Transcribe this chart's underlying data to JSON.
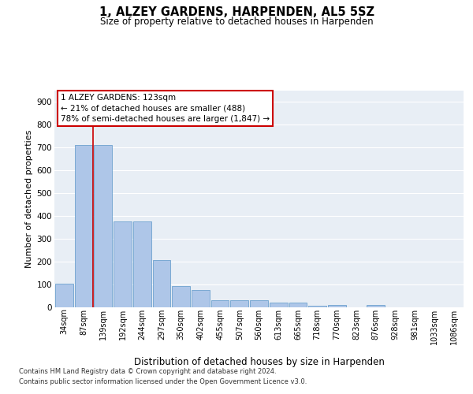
{
  "title": "1, ALZEY GARDENS, HARPENDEN, AL5 5SZ",
  "subtitle": "Size of property relative to detached houses in Harpenden",
  "xlabel": "Distribution of detached houses by size in Harpenden",
  "ylabel": "Number of detached properties",
  "categories": [
    "34sqm",
    "87sqm",
    "139sqm",
    "192sqm",
    "244sqm",
    "297sqm",
    "350sqm",
    "402sqm",
    "455sqm",
    "507sqm",
    "560sqm",
    "613sqm",
    "665sqm",
    "718sqm",
    "770sqm",
    "823sqm",
    "876sqm",
    "928sqm",
    "981sqm",
    "1033sqm",
    "1086sqm"
  ],
  "values": [
    102,
    710,
    710,
    375,
    375,
    207,
    95,
    75,
    32,
    32,
    32,
    20,
    22,
    8,
    9,
    0,
    10,
    0,
    0,
    0,
    0
  ],
  "bar_color": "#aec6e8",
  "bar_edgecolor": "#5a96c8",
  "vline_color": "#cc0000",
  "vline_pos": 1.5,
  "annotation_text": "1 ALZEY GARDENS: 123sqm\n← 21% of detached houses are smaller (488)\n78% of semi-detached houses are larger (1,847) →",
  "ylim": [
    0,
    950
  ],
  "yticks": [
    0,
    100,
    200,
    300,
    400,
    500,
    600,
    700,
    800,
    900
  ],
  "bg_color": "#e8eef5",
  "grid_color": "#ffffff",
  "footer_line1": "Contains HM Land Registry data © Crown copyright and database right 2024.",
  "footer_line2": "Contains public sector information licensed under the Open Government Licence v3.0."
}
